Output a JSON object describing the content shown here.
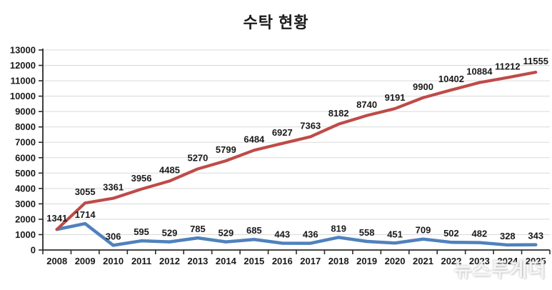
{
  "chart_data": {
    "type": "line",
    "title": "수탁 현황",
    "categories": [
      "2008",
      "2009",
      "2010",
      "2011",
      "2012",
      "2013",
      "2014",
      "2015",
      "2016",
      "2017",
      "2018",
      "2019",
      "2020",
      "2021",
      "2022",
      "2023",
      "2024",
      "2025"
    ],
    "series": [
      {
        "name": "annual-blue",
        "color": "#4F81BD",
        "values": [
          1341,
          1714,
          306,
          595,
          529,
          785,
          529,
          685,
          443,
          436,
          819,
          558,
          451,
          709,
          502,
          482,
          328,
          343
        ],
        "labels": [
          "",
          "1714",
          "306",
          "595",
          "529",
          "785",
          "529",
          "685",
          "443",
          "436",
          "819",
          "558",
          "451",
          "709",
          "502",
          "482",
          "328",
          "343"
        ]
      },
      {
        "name": "cumulative-red",
        "color": "#BE4B48",
        "values": [
          1341,
          3055,
          3361,
          3956,
          4485,
          5270,
          5799,
          6484,
          6927,
          7363,
          8182,
          8740,
          9191,
          9900,
          10402,
          10884,
          11212,
          11555
        ],
        "labels": [
          "1341",
          "3055",
          "3361",
          "3956",
          "4485",
          "5270",
          "5799",
          "6484",
          "6927",
          "7363",
          "8182",
          "8740",
          "9191",
          "9900",
          "10402",
          "10884",
          "11212",
          "11555"
        ]
      }
    ],
    "xlabel": "",
    "ylabel": "",
    "ylim": [
      0,
      13000
    ],
    "ytick_step": 1000,
    "grid": true,
    "legend": "none",
    "data_labels": true,
    "axis_color": "#2b2b2b",
    "gridline_color": "#D9D9D9",
    "label_color": "#1a1a1a"
  },
  "watermark": "뉴스투게더"
}
